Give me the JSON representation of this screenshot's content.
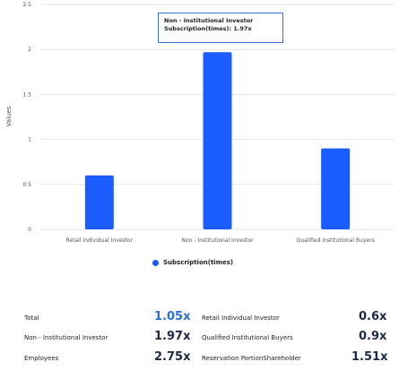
{
  "chart_data": {
    "type": "bar",
    "categories": [
      "Retail Individual Investor",
      "Non - Institutional Investor",
      "Qualified Institutional Buyers"
    ],
    "series": [
      {
        "name": "Subscription(times)",
        "values": [
          0.6,
          1.97,
          0.9
        ],
        "color": "#1a5cff"
      }
    ],
    "ylabel": "Values",
    "ylim": [
      0,
      2.5
    ],
    "yticks": [
      "0",
      "0.5",
      "1",
      "1.5",
      "2",
      "2.5"
    ],
    "grid": true,
    "legend_position": "bottom"
  },
  "tooltip": {
    "line1": "Non - Institutional Investor",
    "line2": "Subscription(times):  1.97x"
  },
  "legend": {
    "label": "Subscription(times)"
  },
  "summary": {
    "left": [
      {
        "label": "Total",
        "value": "1.05x",
        "color": "blue"
      },
      {
        "label": "Non - Institutional Investor",
        "value": "1.97x",
        "color": "dark"
      },
      {
        "label": "Employees",
        "value": "2.75x",
        "color": "dark"
      }
    ],
    "right": [
      {
        "label": "Retail Individual Investor",
        "value": "0.6x"
      },
      {
        "label": "Qualified Institutional Buyers",
        "value": "0.9x"
      },
      {
        "label": "Reservation PortionShareholder",
        "value": "1.51x"
      }
    ]
  }
}
